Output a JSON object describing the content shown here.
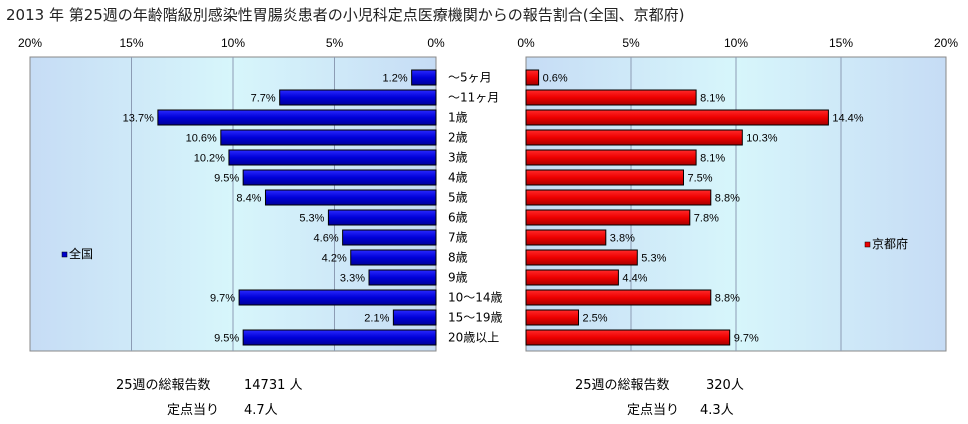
{
  "title": "2013 年 第25週の年齢階級別感染性胃腸炎患者の小児科定点医療機関からの報告割合(全国、京都府)",
  "chart_data": [
    {
      "type": "bar",
      "orientation": "horizontal",
      "direction": "right-to-left",
      "legend": "全国",
      "legend_position": "left",
      "xlim": [
        0,
        20
      ],
      "ticks": [
        "20%",
        "15%",
        "10%",
        "5%",
        "0%"
      ],
      "categories": [
        "～5ヶ月",
        "～11ヶ月",
        "1歳",
        "2歳",
        "3歳",
        "4歳",
        "5歳",
        "6歳",
        "7歳",
        "8歳",
        "9歳",
        "10～14歳",
        "15～19歳",
        "20歳以上"
      ],
      "values": [
        1.2,
        7.7,
        13.7,
        10.6,
        10.2,
        9.5,
        8.4,
        5.3,
        4.6,
        4.2,
        3.3,
        9.7,
        2.1,
        9.5
      ],
      "labels": [
        "1.2%",
        "7.7%",
        "13.7%",
        "10.6%",
        "10.2%",
        "9.5%",
        "8.4%",
        "5.3%",
        "4.6%",
        "4.2%",
        "3.3%",
        "9.7%",
        "2.1%",
        "9.5%"
      ],
      "color": "#0000cc"
    },
    {
      "type": "bar",
      "orientation": "horizontal",
      "direction": "left-to-right",
      "legend": "京都府",
      "legend_position": "right",
      "xlim": [
        0,
        20
      ],
      "ticks": [
        "0%",
        "5%",
        "10%",
        "15%",
        "20%"
      ],
      "categories": [
        "～5ヶ月",
        "～11ヶ月",
        "1歳",
        "2歳",
        "3歳",
        "4歳",
        "5歳",
        "6歳",
        "7歳",
        "8歳",
        "9歳",
        "10～14歳",
        "15～19歳",
        "20歳以上"
      ],
      "values": [
        0.6,
        8.1,
        14.4,
        10.3,
        8.1,
        7.5,
        8.8,
        7.8,
        3.8,
        5.3,
        4.4,
        8.8,
        2.5,
        9.7
      ],
      "labels": [
        "0.6%",
        "8.1%",
        "14.4%",
        "10.3%",
        "8.1%",
        "7.5%",
        "8.8%",
        "7.8%",
        "3.8%",
        "5.3%",
        "4.4%",
        "8.8%",
        "2.5%",
        "9.7%"
      ],
      "color": "#ee0000"
    }
  ],
  "footer": {
    "left": {
      "label1": "25週の総報告数",
      "value1": "14731 人",
      "label2": "定点当り",
      "value2": "4.7人"
    },
    "right": {
      "label1": "25週の総報告数",
      "value1": "320人",
      "label2": "定点当り",
      "value2": "4.3人"
    }
  }
}
